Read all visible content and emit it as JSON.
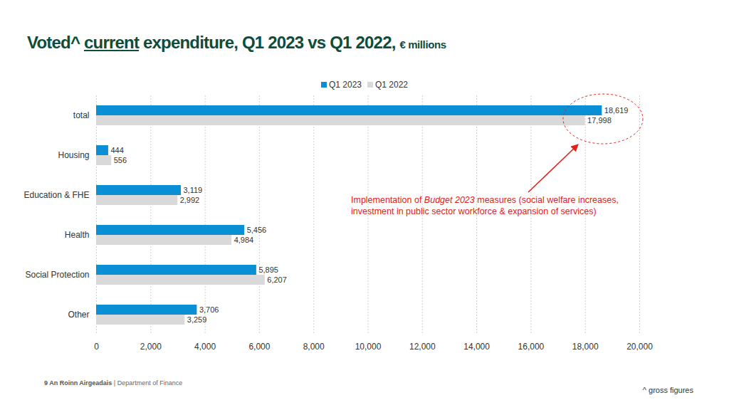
{
  "chart_data": {
    "type": "bar",
    "orientation": "horizontal",
    "title": "Voted^ current expenditure, Q1 2023 vs Q1 2022,",
    "subtitle": "€ millions",
    "categories": [
      "total",
      "Housing",
      "Education & FHE",
      "Health",
      "Social Protection",
      "Other"
    ],
    "series": [
      {
        "name": "Q1 2023",
        "color": "#0a8fd4",
        "values": [
          18619,
          444,
          3119,
          5456,
          5895,
          3706
        ],
        "value_labels": [
          "18,619",
          "444",
          "3,119",
          "5,456",
          "5,895",
          "3,706"
        ]
      },
      {
        "name": "Q1 2022",
        "color": "#d9d9d9",
        "values": [
          17998,
          556,
          2992,
          4984,
          6207,
          3259
        ],
        "value_labels": [
          "17,998",
          "556",
          "2,992",
          "4,984",
          "6,207",
          "3,259"
        ]
      }
    ],
    "xlim": [
      0,
      20000
    ],
    "xticks": [
      0,
      {
        "value": 2000,
        "label": "2,000"
      },
      {
        "value": 4000,
        "label": "4,000"
      },
      {
        "value": 6000,
        "label": "6,000"
      },
      {
        "value": 8000,
        "label": "8,000"
      },
      {
        "value": 10000,
        "label": "10,000"
      },
      {
        "value": 12000,
        "label": "12,000"
      },
      {
        "value": 14000,
        "label": "14,000"
      },
      {
        "value": 16000,
        "label": "16,000"
      },
      {
        "value": 18000,
        "label": "18,000"
      },
      {
        "value": 20000,
        "label": "20,000"
      }
    ],
    "grid": true,
    "legend": "top",
    "data_labels": true,
    "annotations": [
      "Implementation of",
      "Budget 2023",
      "measures (social welfare increases, investment in public sector workforce & expansion of services)",
      "9",
      "An Roinn Airgeadais",
      "| Department of Finance",
      "^ gross figures"
    ]
  }
}
